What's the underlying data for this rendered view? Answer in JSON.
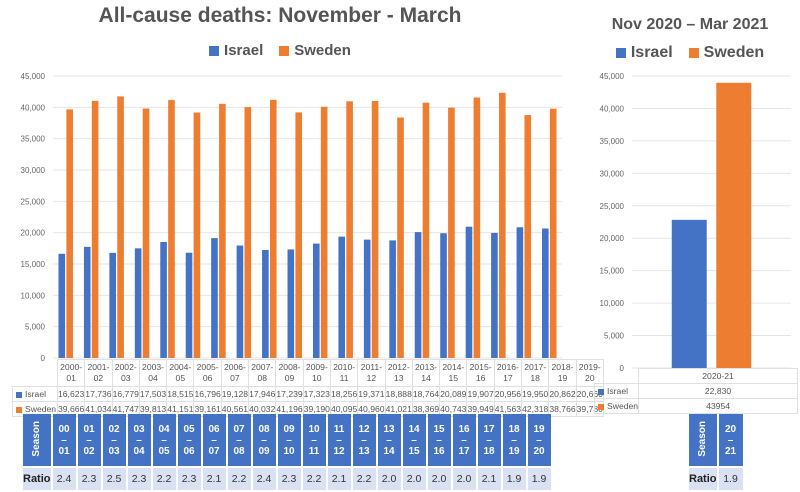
{
  "colors": {
    "israel": "#4472c4",
    "sweden": "#ed7d31",
    "grid": "#e6e6e6",
    "header_bg": "#4472c4",
    "ratio_bg": "#d9e1f2"
  },
  "chart_data": [
    {
      "type": "bar",
      "title": "All-cause deaths: November - March",
      "legend": [
        "Israel",
        "Sweden"
      ],
      "legend_position": "top",
      "categories": [
        "2000-01",
        "2001-02",
        "2002-03",
        "2003-04",
        "2004-05",
        "2005-06",
        "2006-07",
        "2007-08",
        "2008-09",
        "2009-10",
        "2010-11",
        "2011-12",
        "2012-13",
        "2013-14",
        "2014-15",
        "2015-16",
        "2016-17",
        "2017-18",
        "2018-19",
        "2019-20"
      ],
      "category_lines": [
        [
          "2000-",
          "01"
        ],
        [
          "2001-",
          "02"
        ],
        [
          "2002-",
          "03"
        ],
        [
          "2003-",
          "04"
        ],
        [
          "2004-",
          "05"
        ],
        [
          "2005-",
          "06"
        ],
        [
          "2006-",
          "07"
        ],
        [
          "2007-",
          "08"
        ],
        [
          "2008-",
          "09"
        ],
        [
          "2009-",
          "10"
        ],
        [
          "2010-",
          "11"
        ],
        [
          "2011-",
          "12"
        ],
        [
          "2012-",
          "13"
        ],
        [
          "2013-",
          "14"
        ],
        [
          "2014-",
          "15"
        ],
        [
          "2015-",
          "16"
        ],
        [
          "2016-",
          "17"
        ],
        [
          "2017-",
          "18"
        ],
        [
          "2018-",
          "19"
        ],
        [
          "2019-",
          "20"
        ]
      ],
      "series": [
        {
          "name": "Israel",
          "values": [
            16623,
            17736,
            16779,
            17503,
            18515,
            16796,
            19128,
            17946,
            17239,
            17323,
            18256,
            19371,
            18888,
            18764,
            20089,
            19907,
            20956,
            19950,
            20862,
            20660
          ],
          "labels": [
            "16,623",
            "17,736",
            "16,779",
            "17,503",
            "18,515",
            "16,796",
            "19,128",
            "17,946",
            "17,239",
            "17,323",
            "18,256",
            "19,371",
            "18,888",
            "18,764",
            "20,089",
            "19,907",
            "20,956",
            "19,950",
            "20,862",
            "20,660"
          ]
        },
        {
          "name": "Sweden",
          "values": [
            39666,
            41034,
            41747,
            39813,
            41151,
            39161,
            40561,
            40032,
            41196,
            39190,
            40095,
            40960,
            41021,
            38369,
            40743,
            39949,
            41563,
            42318,
            38766,
            39780
          ],
          "labels": [
            "39,666",
            "41,034",
            "41,747",
            "39,813",
            "41,151",
            "39,161",
            "40,561",
            "40,032",
            "41,196",
            "39,190",
            "40,095",
            "40,960",
            "41,021",
            "38,369",
            "40,743",
            "39,949",
            "41,563",
            "42,318",
            "38,766",
            "39,780"
          ]
        }
      ],
      "ylim": [
        0,
        45000
      ],
      "yticks": [
        0,
        5000,
        10000,
        15000,
        20000,
        25000,
        30000,
        35000,
        40000,
        45000
      ],
      "ytick_labels": [
        "0",
        "5,000",
        "10,000",
        "15,000",
        "20,000",
        "25,000",
        "30,000",
        "35,000",
        "40,000",
        "45,000"
      ],
      "grid": true,
      "xlabel": "",
      "ylabel": ""
    },
    {
      "type": "bar",
      "title": "Nov 2020 – Mar 2021",
      "legend": [
        "Israel",
        "Sweden"
      ],
      "legend_position": "top",
      "categories": [
        "2020-21"
      ],
      "series": [
        {
          "name": "Israel",
          "values": [
            22830
          ],
          "labels": [
            "22,830"
          ]
        },
        {
          "name": "Sweden",
          "values": [
            43954
          ],
          "labels": [
            "43954"
          ]
        }
      ],
      "ylim": [
        0,
        45000
      ],
      "yticks": [
        0,
        5000,
        10000,
        15000,
        20000,
        25000,
        30000,
        35000,
        40000,
        45000
      ],
      "ytick_labels": [
        "0",
        "5,000",
        "10,000",
        "15,000",
        "20,000",
        "25,000",
        "30,000",
        "35,000",
        "40,000",
        "45,000"
      ],
      "grid": true,
      "xlabel": "",
      "ylabel": ""
    }
  ],
  "ratio_table_left": {
    "season_label": "Season",
    "ratio_label": "Ratio",
    "seasons": [
      [
        "00",
        "01"
      ],
      [
        "01",
        "02"
      ],
      [
        "02",
        "03"
      ],
      [
        "03",
        "04"
      ],
      [
        "04",
        "05"
      ],
      [
        "05",
        "06"
      ],
      [
        "06",
        "07"
      ],
      [
        "07",
        "08"
      ],
      [
        "08",
        "09"
      ],
      [
        "09",
        "10"
      ],
      [
        "10",
        "11"
      ],
      [
        "11",
        "12"
      ],
      [
        "12",
        "13"
      ],
      [
        "13",
        "14"
      ],
      [
        "14",
        "15"
      ],
      [
        "15",
        "16"
      ],
      [
        "16",
        "17"
      ],
      [
        "17",
        "18"
      ],
      [
        "18",
        "19"
      ],
      [
        "19",
        "20"
      ]
    ],
    "ratios": [
      "2.4",
      "2.3",
      "2.5",
      "2.3",
      "2.2",
      "2.3",
      "2.1",
      "2.2",
      "2.4",
      "2.3",
      "2.2",
      "2.1",
      "2.2",
      "2.0",
      "2.0",
      "2.0",
      "2.0",
      "2.1",
      "1.9",
      "1.9"
    ]
  },
  "ratio_table_right": {
    "season_label": "Season",
    "ratio_label": "Ratio",
    "seasons": [
      [
        "20",
        "21"
      ]
    ],
    "ratios": [
      "1.9"
    ]
  },
  "dash": "–"
}
